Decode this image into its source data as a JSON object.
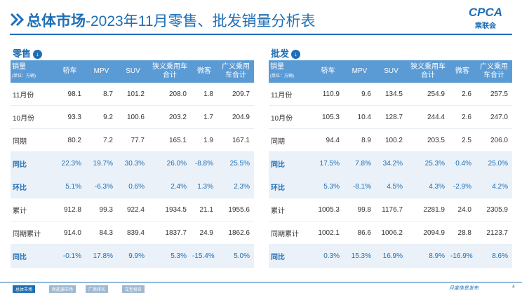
{
  "header": {
    "title_bold": "总体市场",
    "title_rest": "-2023年11月零售、批发销量分析表",
    "logo_text": "CPCA",
    "logo_sub": "乘联会"
  },
  "unit_label": "销量",
  "unit_note": "(单位：万辆)",
  "columns": [
    "轿车",
    "MPV",
    "SUV",
    "狭义乘用车合计",
    "微客",
    "广义乘用车合计"
  ],
  "tables": [
    {
      "label": "零售",
      "rows": [
        [
          "11月份",
          "98.1",
          "8.7",
          "101.2",
          "208.0",
          "1.8",
          "209.7"
        ],
        [
          "10月份",
          "93.3",
          "9.2",
          "100.6",
          "203.2",
          "1.7",
          "204.9"
        ],
        [
          "同期",
          "80.2",
          "7.2",
          "77.7",
          "165.1",
          "1.9",
          "167.1"
        ],
        [
          "同比",
          "22.3%",
          "19.7%",
          "30.3%",
          "26.0%",
          "-8.8%",
          "25.5%"
        ],
        [
          "环比",
          "5.1%",
          "-6.3%",
          "0.6%",
          "2.4%",
          "1.3%",
          "2.3%"
        ],
        [
          "累计",
          "912.8",
          "99.3",
          "922.4",
          "1934.5",
          "21.1",
          "1955.6"
        ],
        [
          "同期累计",
          "914.0",
          "84.3",
          "839.4",
          "1837.7",
          "24.9",
          "1862.6"
        ],
        [
          "同比",
          "-0.1%",
          "17.8%",
          "9.9%",
          "5.3%",
          "-15.4%",
          "5.0%"
        ]
      ]
    },
    {
      "label": "批发",
      "rows": [
        [
          "11月份",
          "110.9",
          "9.6",
          "134.5",
          "254.9",
          "2.6",
          "257.5"
        ],
        [
          "10月份",
          "105.3",
          "10.4",
          "128.7",
          "244.4",
          "2.6",
          "247.0"
        ],
        [
          "同期",
          "94.4",
          "8.9",
          "100.2",
          "203.5",
          "2.5",
          "206.0"
        ],
        [
          "同比",
          "17.5%",
          "7.8%",
          "34.2%",
          "25.3%",
          "0.4%",
          "25.0%"
        ],
        [
          "环比",
          "5.3%",
          "-8.1%",
          "4.5%",
          "4.3%",
          "-2.9%",
          "4.2%"
        ],
        [
          "累计",
          "1005.3",
          "99.8",
          "1176.7",
          "2281.9",
          "24.0",
          "2305.9"
        ],
        [
          "同期累计",
          "1002.1",
          "86.6",
          "1006.2",
          "2094.9",
          "28.8",
          "2123.7"
        ],
        [
          "同比",
          "0.3%",
          "15.3%",
          "16.9%",
          "8.9%",
          "-16.9%",
          "8.6%"
        ]
      ]
    }
  ],
  "footer": {
    "tabs": [
      "总体市场",
      "新能源市场",
      "厂商排名",
      "车型排名"
    ],
    "note": "月度信息发布",
    "page": "4"
  }
}
